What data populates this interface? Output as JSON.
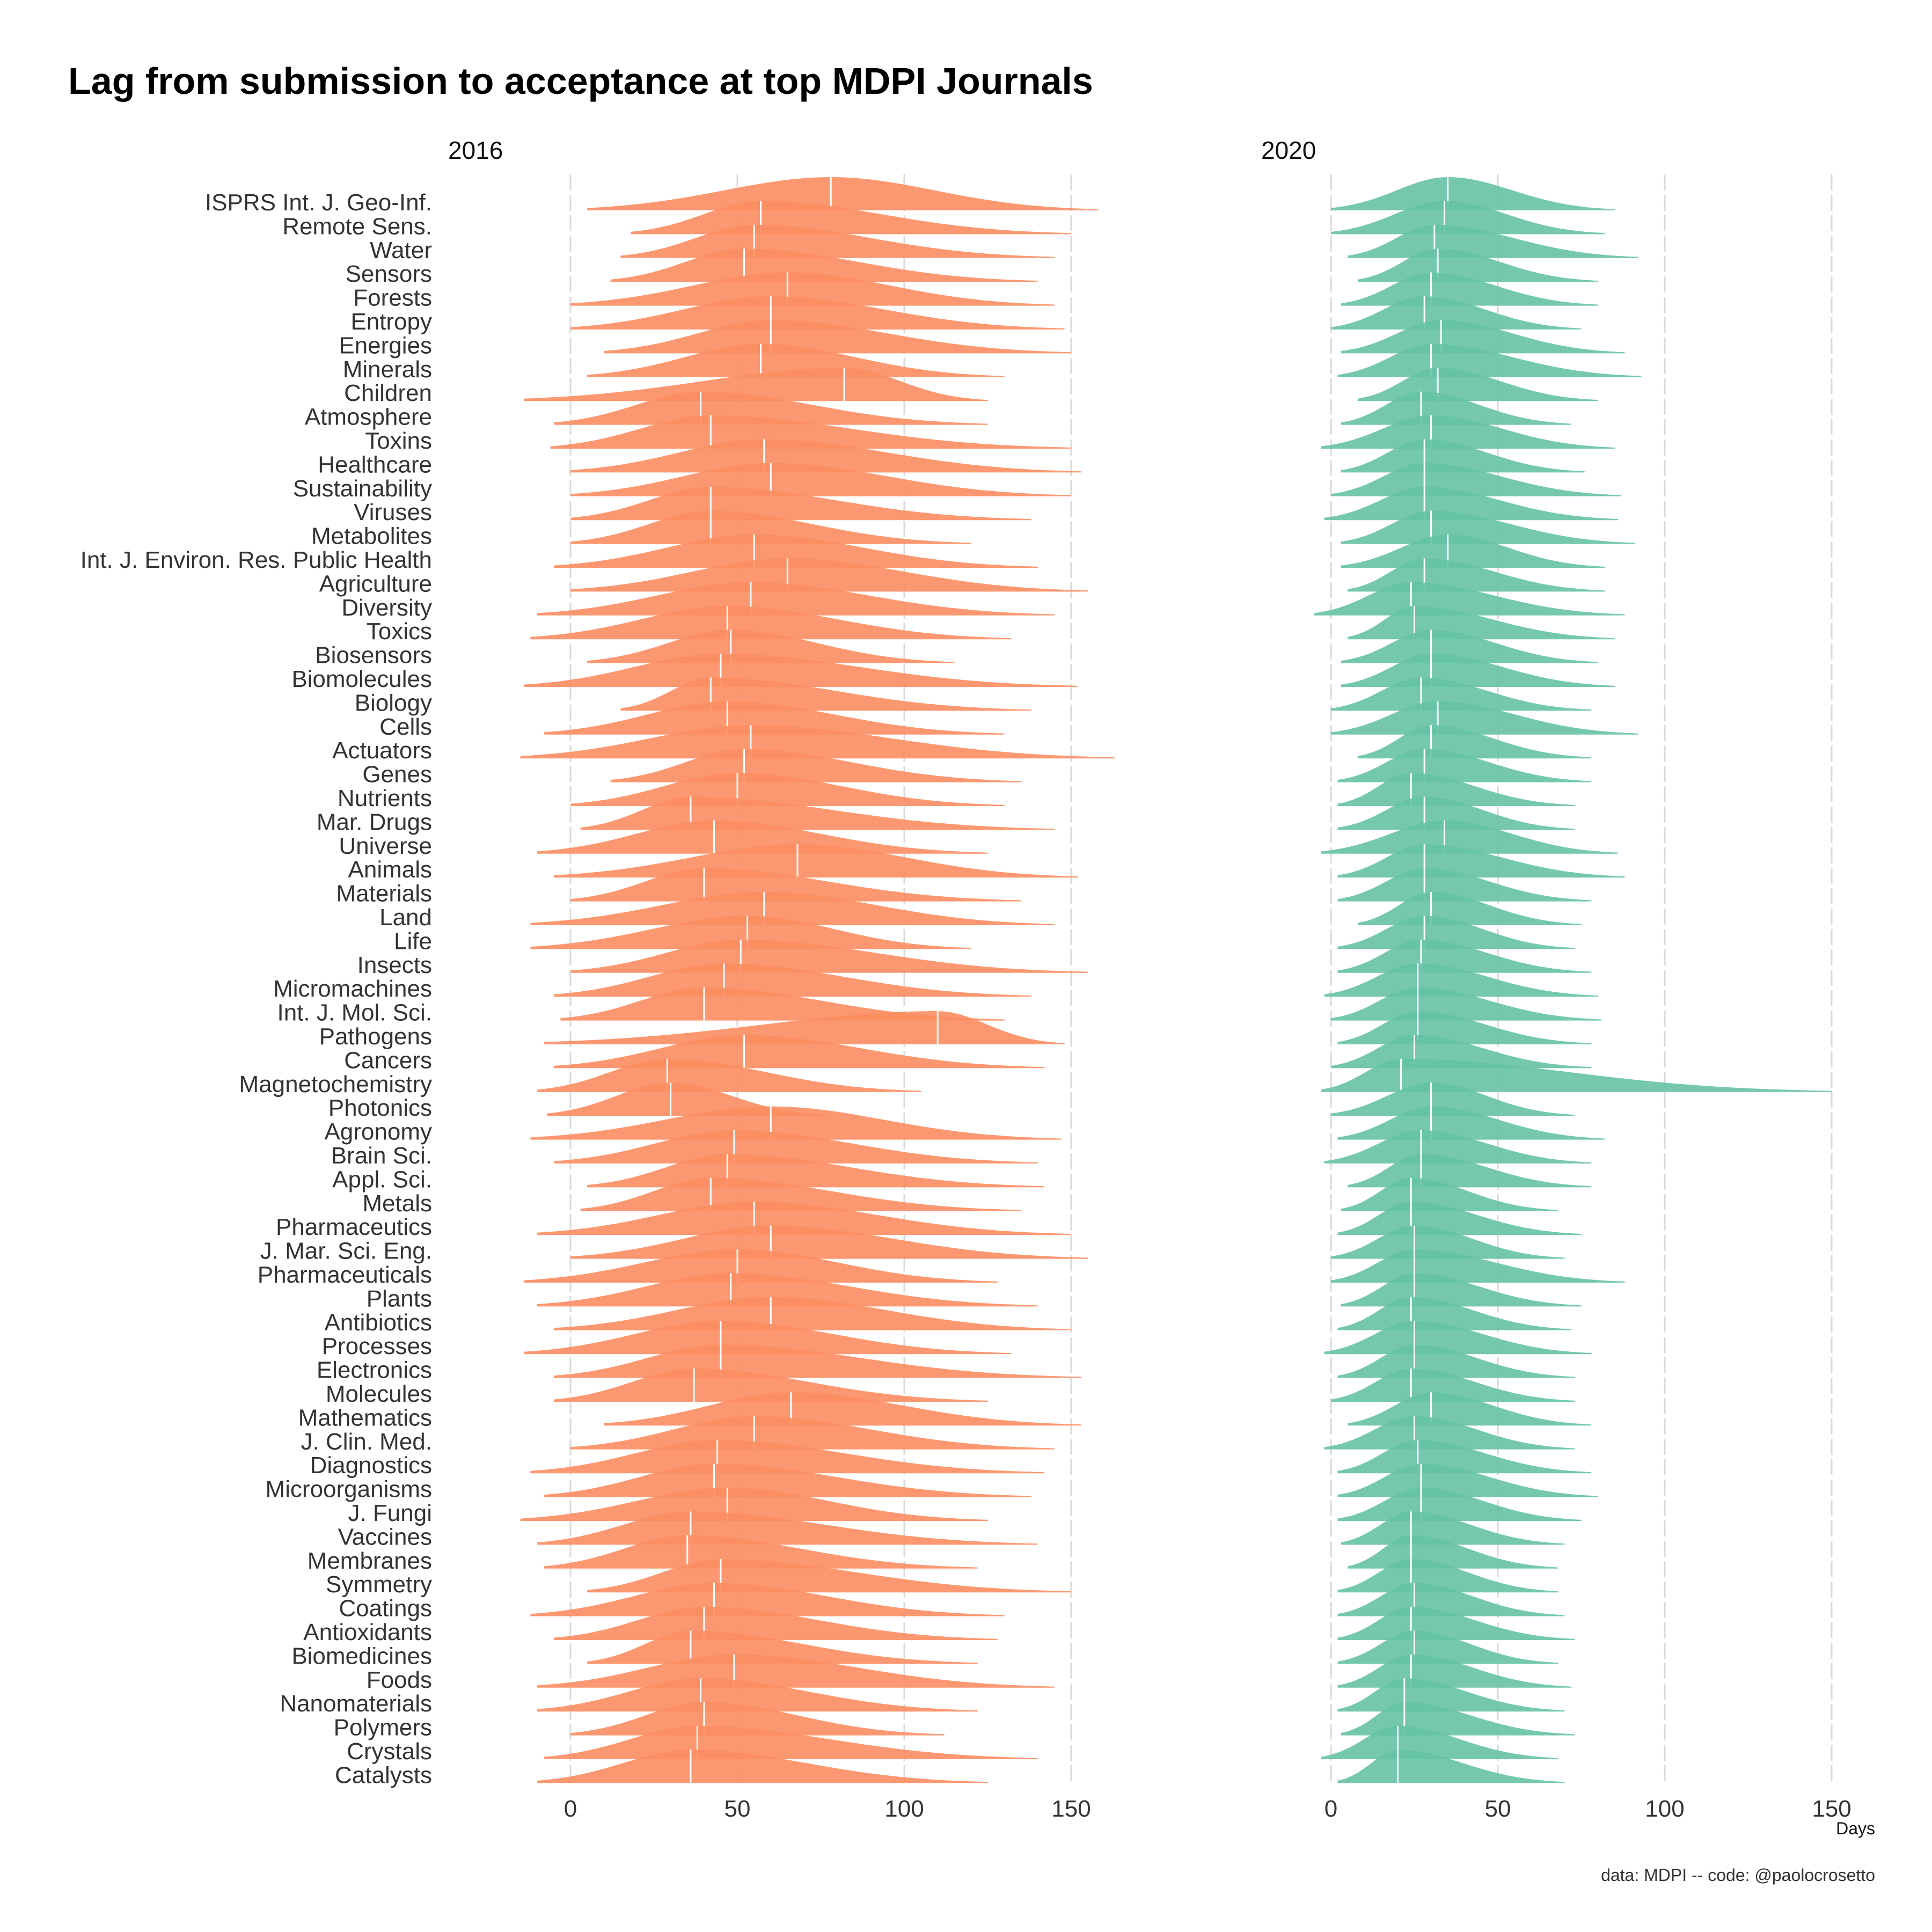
{
  "chart_data": {
    "type": "ridgeline",
    "title": "Lag from submission to acceptance at top MDPI Journals",
    "xlabel": "Days",
    "caption": "data: MDPI -- code: @paolocrosetto",
    "xlim": [
      0,
      150
    ],
    "x_ticks": [
      "0",
      "50",
      "100",
      "150"
    ],
    "grid": "vertical",
    "colors": {
      "2016": "#FC8D62",
      "2020": "#66C2A5",
      "median_line": "#ffffff"
    },
    "journals": [
      "ISPRS Int. J. Geo-Inf.",
      "Remote Sens.",
      "Water",
      "Sensors",
      "Forests",
      "Entropy",
      "Energies",
      "Minerals",
      "Children",
      "Atmosphere",
      "Toxins",
      "Healthcare",
      "Sustainability",
      "Viruses",
      "Metabolites",
      "Int. J. Environ. Res. Public Health",
      "Agriculture",
      "Diversity",
      "Toxics",
      "Biosensors",
      "Biomolecules",
      "Biology",
      "Cells",
      "Actuators",
      "Genes",
      "Nutrients",
      "Mar. Drugs",
      "Universe",
      "Animals",
      "Materials",
      "Land",
      "Life",
      "Insects",
      "Micromachines",
      "Int. J. Mol. Sci.",
      "Pathogens",
      "Cancers",
      "Magnetochemistry",
      "Photonics",
      "Agronomy",
      "Brain Sci.",
      "Appl. Sci.",
      "Metals",
      "Pharmaceutics",
      "J. Mar. Sci. Eng.",
      "Pharmaceuticals",
      "Plants",
      "Antibiotics",
      "Processes",
      "Electronics",
      "Molecules",
      "Mathematics",
      "J. Clin. Med.",
      "Diagnostics",
      "Microorganisms",
      "J. Fungi",
      "Vaccines",
      "Membranes",
      "Symmetry",
      "Coatings",
      "Antioxidants",
      "Biomedicines",
      "Foods",
      "Nanomaterials",
      "Polymers",
      "Crystals",
      "Catalysts"
    ],
    "panels": [
      {
        "name": "2016",
        "series": [
          {
            "journal": "ISPRS Int. J. Geo-Inf.",
            "lo": 5,
            "hi": 158,
            "median": 78
          },
          {
            "journal": "Remote Sens.",
            "lo": 18,
            "hi": 150,
            "median": 57
          },
          {
            "journal": "Water",
            "lo": 15,
            "hi": 145,
            "median": 55
          },
          {
            "journal": "Sensors",
            "lo": 12,
            "hi": 140,
            "median": 52
          },
          {
            "journal": "Forests",
            "lo": 0,
            "hi": 145,
            "median": 65
          },
          {
            "journal": "Entropy",
            "lo": 0,
            "hi": 148,
            "median": 60
          },
          {
            "journal": "Energies",
            "lo": 10,
            "hi": 150,
            "median": 60
          },
          {
            "journal": "Minerals",
            "lo": 5,
            "hi": 130,
            "median": 57
          },
          {
            "journal": "Children",
            "lo": -14,
            "hi": 125,
            "median": 82
          },
          {
            "journal": "Atmosphere",
            "lo": -5,
            "hi": 125,
            "median": 39
          },
          {
            "journal": "Toxins",
            "lo": -6,
            "hi": 150,
            "median": 42
          },
          {
            "journal": "Healthcare",
            "lo": 0,
            "hi": 153,
            "median": 58
          },
          {
            "journal": "Sustainability",
            "lo": 0,
            "hi": 150,
            "median": 60
          },
          {
            "journal": "Viruses",
            "lo": 0,
            "hi": 138,
            "median": 42
          },
          {
            "journal": "Metabolites",
            "lo": 0,
            "hi": 120,
            "median": 42
          },
          {
            "journal": "Int. J. Environ. Res. Public Health",
            "lo": -5,
            "hi": 140,
            "median": 55
          },
          {
            "journal": "Agriculture",
            "lo": 0,
            "hi": 155,
            "median": 65
          },
          {
            "journal": "Diversity",
            "lo": -10,
            "hi": 145,
            "median": 54
          },
          {
            "journal": "Toxics",
            "lo": -12,
            "hi": 132,
            "median": 47
          },
          {
            "journal": "Biosensors",
            "lo": 5,
            "hi": 115,
            "median": 48
          },
          {
            "journal": "Biomolecules",
            "lo": -14,
            "hi": 152,
            "median": 45
          },
          {
            "journal": "Biology",
            "lo": 15,
            "hi": 138,
            "median": 42
          },
          {
            "journal": "Cells",
            "lo": -8,
            "hi": 130,
            "median": 47
          },
          {
            "journal": "Actuators",
            "lo": -15,
            "hi": 163,
            "median": 54
          },
          {
            "journal": "Genes",
            "lo": 12,
            "hi": 135,
            "median": 52
          },
          {
            "journal": "Nutrients",
            "lo": 0,
            "hi": 130,
            "median": 50
          },
          {
            "journal": "Mar. Drugs",
            "lo": 3,
            "hi": 145,
            "median": 36
          },
          {
            "journal": "Universe",
            "lo": -10,
            "hi": 125,
            "median": 43
          },
          {
            "journal": "Animals",
            "lo": -5,
            "hi": 152,
            "median": 68
          },
          {
            "journal": "Materials",
            "lo": 0,
            "hi": 135,
            "median": 40
          },
          {
            "journal": "Land",
            "lo": -12,
            "hi": 145,
            "median": 58
          },
          {
            "journal": "Life",
            "lo": -12,
            "hi": 120,
            "median": 53
          },
          {
            "journal": "Insects",
            "lo": 0,
            "hi": 155,
            "median": 51
          },
          {
            "journal": "Micromachines",
            "lo": -5,
            "hi": 138,
            "median": 46
          },
          {
            "journal": "Int. J. Mol. Sci.",
            "lo": -3,
            "hi": 130,
            "median": 40
          },
          {
            "journal": "Pathogens",
            "lo": -8,
            "hi": 148,
            "median": 110
          },
          {
            "journal": "Cancers",
            "lo": -5,
            "hi": 142,
            "median": 52
          },
          {
            "journal": "Magnetochemistry",
            "lo": -10,
            "hi": 105,
            "median": 29
          },
          {
            "journal": "Photonics",
            "lo": -7,
            "hi": 77,
            "median": 30
          },
          {
            "journal": "Agronomy",
            "lo": -12,
            "hi": 147,
            "median": 60
          },
          {
            "journal": "Brain Sci.",
            "lo": -5,
            "hi": 140,
            "median": 49
          },
          {
            "journal": "Appl. Sci.",
            "lo": 5,
            "hi": 142,
            "median": 47
          },
          {
            "journal": "Metals",
            "lo": 3,
            "hi": 135,
            "median": 42
          },
          {
            "journal": "Pharmaceutics",
            "lo": -10,
            "hi": 150,
            "median": 55
          },
          {
            "journal": "J. Mar. Sci. Eng.",
            "lo": 0,
            "hi": 155,
            "median": 60
          },
          {
            "journal": "Pharmaceuticals",
            "lo": -14,
            "hi": 128,
            "median": 50
          },
          {
            "journal": "Plants",
            "lo": -10,
            "hi": 140,
            "median": 48
          },
          {
            "journal": "Antibiotics",
            "lo": -5,
            "hi": 150,
            "median": 60
          },
          {
            "journal": "Processes",
            "lo": -14,
            "hi": 132,
            "median": 45
          },
          {
            "journal": "Electronics",
            "lo": -5,
            "hi": 153,
            "median": 45
          },
          {
            "journal": "Molecules",
            "lo": -5,
            "hi": 125,
            "median": 37
          },
          {
            "journal": "Mathematics",
            "lo": 10,
            "hi": 153,
            "median": 66
          },
          {
            "journal": "J. Clin. Med.",
            "lo": 0,
            "hi": 145,
            "median": 55
          },
          {
            "journal": "Diagnostics",
            "lo": -12,
            "hi": 142,
            "median": 44
          },
          {
            "journal": "Microorganisms",
            "lo": -8,
            "hi": 138,
            "median": 43
          },
          {
            "journal": "J. Fungi",
            "lo": -15,
            "hi": 125,
            "median": 47
          },
          {
            "journal": "Vaccines",
            "lo": -10,
            "hi": 140,
            "median": 36
          },
          {
            "journal": "Membranes",
            "lo": -8,
            "hi": 122,
            "median": 35
          },
          {
            "journal": "Symmetry",
            "lo": 5,
            "hi": 150,
            "median": 45
          },
          {
            "journal": "Coatings",
            "lo": -12,
            "hi": 130,
            "median": 43
          },
          {
            "journal": "Antioxidants",
            "lo": -5,
            "hi": 128,
            "median": 40
          },
          {
            "journal": "Biomedicines",
            "lo": 5,
            "hi": 122,
            "median": 36
          },
          {
            "journal": "Foods",
            "lo": -10,
            "hi": 145,
            "median": 49
          },
          {
            "journal": "Nanomaterials",
            "lo": -10,
            "hi": 122,
            "median": 39
          },
          {
            "journal": "Polymers",
            "lo": 0,
            "hi": 112,
            "median": 40
          },
          {
            "journal": "Crystals",
            "lo": -8,
            "hi": 140,
            "median": 38
          },
          {
            "journal": "Catalysts",
            "lo": -10,
            "hi": 125,
            "median": 36
          }
        ]
      },
      {
        "name": "2020",
        "series": [
          {
            "journal": "ISPRS Int. J. Geo-Inf.",
            "lo": 0,
            "hi": 85,
            "median": 35
          },
          {
            "journal": "Remote Sens.",
            "lo": 0,
            "hi": 82,
            "median": 34
          },
          {
            "journal": "Water",
            "lo": 5,
            "hi": 92,
            "median": 31
          },
          {
            "journal": "Sensors",
            "lo": 8,
            "hi": 80,
            "median": 32
          },
          {
            "journal": "Forests",
            "lo": 3,
            "hi": 80,
            "median": 30
          },
          {
            "journal": "Entropy",
            "lo": 0,
            "hi": 75,
            "median": 28
          },
          {
            "journal": "Energies",
            "lo": 3,
            "hi": 88,
            "median": 33
          },
          {
            "journal": "Minerals",
            "lo": 2,
            "hi": 93,
            "median": 30
          },
          {
            "journal": "Children",
            "lo": 8,
            "hi": 80,
            "median": 32
          },
          {
            "journal": "Atmosphere",
            "lo": 3,
            "hi": 72,
            "median": 27
          },
          {
            "journal": "Toxins",
            "lo": -3,
            "hi": 85,
            "median": 30
          },
          {
            "journal": "Healthcare",
            "lo": 3,
            "hi": 76,
            "median": 28
          },
          {
            "journal": "Sustainability",
            "lo": 0,
            "hi": 87,
            "median": 28
          },
          {
            "journal": "Viruses",
            "lo": -2,
            "hi": 86,
            "median": 28
          },
          {
            "journal": "Metabolites",
            "lo": 3,
            "hi": 91,
            "median": 30
          },
          {
            "journal": "Int. J. Environ. Res. Public Health",
            "lo": 3,
            "hi": 82,
            "median": 35
          },
          {
            "journal": "Agriculture",
            "lo": 5,
            "hi": 82,
            "median": 28
          },
          {
            "journal": "Diversity",
            "lo": -5,
            "hi": 88,
            "median": 24
          },
          {
            "journal": "Toxics",
            "lo": 5,
            "hi": 85,
            "median": 25
          },
          {
            "journal": "Biosensors",
            "lo": 3,
            "hi": 80,
            "median": 30
          },
          {
            "journal": "Biomolecules",
            "lo": 3,
            "hi": 85,
            "median": 30
          },
          {
            "journal": "Biology",
            "lo": 0,
            "hi": 78,
            "median": 27
          },
          {
            "journal": "Cells",
            "lo": 0,
            "hi": 92,
            "median": 32
          },
          {
            "journal": "Actuators",
            "lo": 8,
            "hi": 78,
            "median": 30
          },
          {
            "journal": "Genes",
            "lo": 2,
            "hi": 78,
            "median": 28
          },
          {
            "journal": "Nutrients",
            "lo": 2,
            "hi": 73,
            "median": 24
          },
          {
            "journal": "Mar. Drugs",
            "lo": 2,
            "hi": 73,
            "median": 28
          },
          {
            "journal": "Universe",
            "lo": -3,
            "hi": 86,
            "median": 34
          },
          {
            "journal": "Animals",
            "lo": 2,
            "hi": 88,
            "median": 28
          },
          {
            "journal": "Materials",
            "lo": 2,
            "hi": 78,
            "median": 28
          },
          {
            "journal": "Land",
            "lo": 8,
            "hi": 75,
            "median": 30
          },
          {
            "journal": "Life",
            "lo": 2,
            "hi": 73,
            "median": 28
          },
          {
            "journal": "Insects",
            "lo": 2,
            "hi": 78,
            "median": 27
          },
          {
            "journal": "Micromachines",
            "lo": -2,
            "hi": 80,
            "median": 26
          },
          {
            "journal": "Int. J. Mol. Sci.",
            "lo": 0,
            "hi": 81,
            "median": 26
          },
          {
            "journal": "Pathogens",
            "lo": 2,
            "hi": 78,
            "median": 26
          },
          {
            "journal": "Cancers",
            "lo": 0,
            "hi": 78,
            "median": 25
          },
          {
            "journal": "Magnetochemistry",
            "lo": -3,
            "hi": 150,
            "median": 21
          },
          {
            "journal": "Photonics",
            "lo": 0,
            "hi": 73,
            "median": 30
          },
          {
            "journal": "Agronomy",
            "lo": 2,
            "hi": 82,
            "median": 30
          },
          {
            "journal": "Brain Sci.",
            "lo": -2,
            "hi": 78,
            "median": 27
          },
          {
            "journal": "Appl. Sci.",
            "lo": 5,
            "hi": 78,
            "median": 27
          },
          {
            "journal": "Metals",
            "lo": 3,
            "hi": 68,
            "median": 24
          },
          {
            "journal": "Pharmaceutics",
            "lo": 2,
            "hi": 75,
            "median": 24
          },
          {
            "journal": "J. Mar. Sci. Eng.",
            "lo": 0,
            "hi": 70,
            "median": 25
          },
          {
            "journal": "Pharmaceuticals",
            "lo": 0,
            "hi": 88,
            "median": 25
          },
          {
            "journal": "Plants",
            "lo": 3,
            "hi": 75,
            "median": 25
          },
          {
            "journal": "Antibiotics",
            "lo": 2,
            "hi": 72,
            "median": 24
          },
          {
            "journal": "Processes",
            "lo": -2,
            "hi": 78,
            "median": 25
          },
          {
            "journal": "Electronics",
            "lo": 2,
            "hi": 73,
            "median": 25
          },
          {
            "journal": "Molecules",
            "lo": 0,
            "hi": 73,
            "median": 24
          },
          {
            "journal": "Mathematics",
            "lo": 5,
            "hi": 78,
            "median": 30
          },
          {
            "journal": "J. Clin. Med.",
            "lo": -2,
            "hi": 73,
            "median": 25
          },
          {
            "journal": "Diagnostics",
            "lo": 2,
            "hi": 78,
            "median": 26
          },
          {
            "journal": "Microorganisms",
            "lo": 2,
            "hi": 80,
            "median": 27
          },
          {
            "journal": "J. Fungi",
            "lo": 2,
            "hi": 75,
            "median": 27
          },
          {
            "journal": "Vaccines",
            "lo": 3,
            "hi": 70,
            "median": 24
          },
          {
            "journal": "Membranes",
            "lo": 5,
            "hi": 68,
            "median": 24
          },
          {
            "journal": "Symmetry",
            "lo": 2,
            "hi": 68,
            "median": 24
          },
          {
            "journal": "Coatings",
            "lo": 2,
            "hi": 70,
            "median": 25
          },
          {
            "journal": "Antioxidants",
            "lo": 2,
            "hi": 73,
            "median": 24
          },
          {
            "journal": "Biomedicines",
            "lo": 2,
            "hi": 68,
            "median": 25
          },
          {
            "journal": "Foods",
            "lo": 2,
            "hi": 72,
            "median": 24
          },
          {
            "journal": "Nanomaterials",
            "lo": 2,
            "hi": 70,
            "median": 22
          },
          {
            "journal": "Polymers",
            "lo": 3,
            "hi": 73,
            "median": 22
          },
          {
            "journal": "Crystals",
            "lo": -3,
            "hi": 68,
            "median": 20
          },
          {
            "journal": "Catalysts",
            "lo": 2,
            "hi": 70,
            "median": 20
          }
        ]
      }
    ]
  }
}
